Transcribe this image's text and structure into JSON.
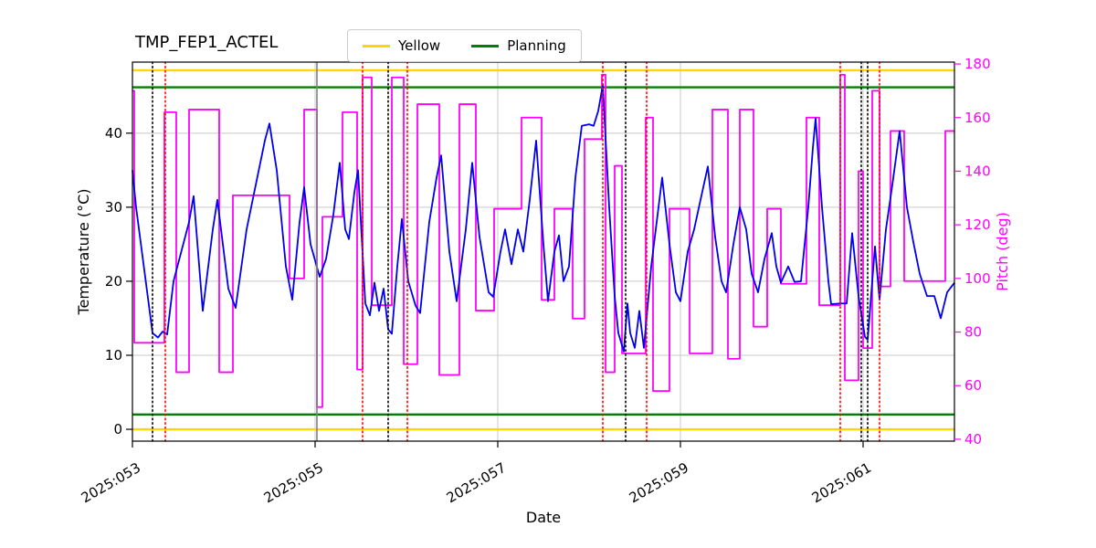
{
  "title": "TMP_FEP1_ACTEL",
  "legend": {
    "items": [
      {
        "label": "Yellow",
        "color": "#ffd700"
      },
      {
        "label": "Planning",
        "color": "#008000"
      }
    ]
  },
  "chart_data": {
    "type": "line",
    "title": "TMP_FEP1_ACTEL",
    "xlabel": "Date",
    "ylabel_left": "Temperature (°C)",
    "ylabel_right": "Pitch (deg)",
    "x_range": [
      53,
      62
    ],
    "ylim_left": [
      -1.6,
      49.6
    ],
    "ylim_right": [
      39.3,
      180.7
    ],
    "grid": true,
    "x_ticks": [
      {
        "day": 53,
        "label": "2025:053"
      },
      {
        "day": 55,
        "label": "2025:055"
      },
      {
        "day": 57,
        "label": "2025:057"
      },
      {
        "day": 59,
        "label": "2025:059"
      },
      {
        "day": 61,
        "label": "2025:061"
      }
    ],
    "y_ticks_left": [
      0,
      10,
      20,
      30,
      40
    ],
    "y_ticks_right": [
      40,
      60,
      80,
      100,
      120,
      140,
      160,
      180
    ],
    "hlines": [
      {
        "name": "Yellow",
        "color": "#ffd700",
        "axis": "left",
        "values": [
          0,
          48.5
        ]
      },
      {
        "name": "Planning",
        "color": "#008000",
        "axis": "left",
        "values": [
          2,
          46.2
        ]
      }
    ],
    "vlines": [
      {
        "name": "black-dotted-events",
        "color": "#000000",
        "style": "dotted",
        "days": [
          53.22,
          55.8,
          58.4,
          60.98,
          61.05
        ]
      },
      {
        "name": "red-dotted-events",
        "color": "#ff0000",
        "style": "dotted",
        "days": [
          53.36,
          55.52,
          56.01,
          58.15,
          58.63,
          60.75,
          61.18
        ]
      },
      {
        "name": "gray-solid-marker",
        "color": "#808080",
        "style": "solid",
        "days": [
          55.02
        ]
      }
    ],
    "series": [
      {
        "name": "Temperature",
        "axis": "left",
        "color": "#0000ee",
        "draw": "line",
        "points": [
          [
            53.0,
            35.0
          ],
          [
            53.04,
            30.0
          ],
          [
            53.22,
            13.0
          ],
          [
            53.28,
            12.4
          ],
          [
            53.33,
            13.2
          ],
          [
            53.38,
            12.8
          ],
          [
            53.45,
            20.0
          ],
          [
            53.62,
            28.0
          ],
          [
            53.67,
            31.5
          ],
          [
            53.77,
            16.0
          ],
          [
            53.88,
            27.0
          ],
          [
            53.93,
            31.0
          ],
          [
            54.05,
            19.0
          ],
          [
            54.13,
            16.4
          ],
          [
            54.25,
            27.0
          ],
          [
            54.35,
            33.0
          ],
          [
            54.45,
            39.0
          ],
          [
            54.5,
            41.3
          ],
          [
            54.58,
            35.0
          ],
          [
            54.68,
            22.0
          ],
          [
            54.75,
            17.5
          ],
          [
            54.83,
            28.0
          ],
          [
            54.88,
            32.7
          ],
          [
            54.95,
            25.0
          ],
          [
            55.05,
            20.6
          ],
          [
            55.12,
            23.0
          ],
          [
            55.2,
            29.0
          ],
          [
            55.27,
            36.0
          ],
          [
            55.33,
            27.0
          ],
          [
            55.37,
            25.7
          ],
          [
            55.43,
            32.0
          ],
          [
            55.47,
            35.0
          ],
          [
            55.55,
            17.0
          ],
          [
            55.6,
            15.4
          ],
          [
            55.65,
            19.8
          ],
          [
            55.7,
            16.0
          ],
          [
            55.75,
            19.0
          ],
          [
            55.8,
            13.5
          ],
          [
            55.84,
            12.9
          ],
          [
            55.9,
            22.0
          ],
          [
            55.95,
            28.4
          ],
          [
            56.02,
            20.0
          ],
          [
            56.1,
            16.7
          ],
          [
            56.15,
            15.7
          ],
          [
            56.25,
            28.0
          ],
          [
            56.33,
            34.0
          ],
          [
            56.38,
            37.0
          ],
          [
            56.47,
            24.0
          ],
          [
            56.55,
            17.3
          ],
          [
            56.65,
            27.0
          ],
          [
            56.72,
            36.0
          ],
          [
            56.8,
            26.0
          ],
          [
            56.9,
            18.5
          ],
          [
            56.95,
            17.9
          ],
          [
            57.03,
            24.0
          ],
          [
            57.08,
            27.0
          ],
          [
            57.15,
            22.3
          ],
          [
            57.22,
            27.0
          ],
          [
            57.28,
            24.0
          ],
          [
            57.35,
            31.0
          ],
          [
            57.42,
            39.0
          ],
          [
            57.5,
            25.0
          ],
          [
            57.55,
            17.3
          ],
          [
            57.62,
            24.0
          ],
          [
            57.67,
            26.2
          ],
          [
            57.72,
            20.0
          ],
          [
            57.78,
            22.0
          ],
          [
            57.85,
            34.0
          ],
          [
            57.92,
            41.0
          ],
          [
            58.0,
            41.2
          ],
          [
            58.05,
            41.0
          ],
          [
            58.1,
            43.0
          ],
          [
            58.15,
            46.5
          ],
          [
            58.22,
            30.0
          ],
          [
            58.28,
            18.0
          ],
          [
            58.32,
            13.0
          ],
          [
            58.38,
            10.5
          ],
          [
            58.42,
            17.0
          ],
          [
            58.45,
            13.0
          ],
          [
            58.5,
            11.0
          ],
          [
            58.55,
            16.0
          ],
          [
            58.6,
            11.0
          ],
          [
            58.68,
            22.0
          ],
          [
            58.75,
            29.0
          ],
          [
            58.8,
            34.0
          ],
          [
            58.88,
            25.0
          ],
          [
            58.95,
            18.5
          ],
          [
            59.0,
            17.3
          ],
          [
            59.08,
            24.0
          ],
          [
            59.15,
            27.0
          ],
          [
            59.22,
            31.0
          ],
          [
            59.3,
            35.5
          ],
          [
            59.38,
            26.0
          ],
          [
            59.45,
            20.0
          ],
          [
            59.5,
            18.5
          ],
          [
            59.58,
            25.0
          ],
          [
            59.65,
            30.0
          ],
          [
            59.72,
            27.0
          ],
          [
            59.78,
            21.0
          ],
          [
            59.85,
            18.5
          ],
          [
            59.92,
            23.0
          ],
          [
            60.0,
            26.5
          ],
          [
            60.05,
            22.0
          ],
          [
            60.1,
            19.8
          ],
          [
            60.18,
            22.0
          ],
          [
            60.25,
            19.9
          ],
          [
            60.32,
            20.0
          ],
          [
            60.4,
            30.0
          ],
          [
            60.45,
            38.0
          ],
          [
            60.48,
            42.0
          ],
          [
            60.55,
            30.0
          ],
          [
            60.62,
            20.0
          ],
          [
            60.65,
            16.9
          ],
          [
            60.75,
            17.0
          ],
          [
            60.82,
            17.0
          ],
          [
            60.88,
            26.5
          ],
          [
            60.95,
            18.0
          ],
          [
            61.02,
            12.5
          ],
          [
            61.05,
            12.1
          ],
          [
            61.1,
            20.0
          ],
          [
            61.13,
            24.7
          ],
          [
            61.18,
            17.5
          ],
          [
            61.25,
            27.0
          ],
          [
            61.32,
            33.0
          ],
          [
            61.4,
            40.3
          ],
          [
            61.48,
            30.0
          ],
          [
            61.55,
            25.3
          ],
          [
            61.62,
            21.0
          ],
          [
            61.7,
            18.0
          ],
          [
            61.78,
            18.0
          ],
          [
            61.85,
            15.0
          ],
          [
            61.92,
            18.5
          ],
          [
            62.0,
            19.8
          ]
        ]
      },
      {
        "name": "Pitch",
        "axis": "right",
        "color": "#ff00ff",
        "draw": "step",
        "steps": [
          [
            53.0,
            53.02,
            170
          ],
          [
            53.02,
            53.35,
            76
          ],
          [
            53.35,
            53.48,
            162
          ],
          [
            53.48,
            53.62,
            65
          ],
          [
            53.62,
            53.95,
            163
          ],
          [
            53.95,
            54.1,
            65
          ],
          [
            54.1,
            54.72,
            131
          ],
          [
            54.72,
            54.88,
            100
          ],
          [
            54.88,
            55.02,
            163
          ],
          [
            55.02,
            55.08,
            52
          ],
          [
            55.08,
            55.3,
            123
          ],
          [
            55.3,
            55.46,
            162
          ],
          [
            55.46,
            55.52,
            66
          ],
          [
            55.52,
            55.62,
            175
          ],
          [
            55.62,
            55.84,
            90
          ],
          [
            55.84,
            55.97,
            175
          ],
          [
            55.97,
            56.12,
            68
          ],
          [
            56.12,
            56.36,
            165
          ],
          [
            56.36,
            56.58,
            64
          ],
          [
            56.58,
            56.76,
            165
          ],
          [
            56.76,
            56.96,
            88
          ],
          [
            56.96,
            57.26,
            126
          ],
          [
            57.26,
            57.48,
            160
          ],
          [
            57.48,
            57.62,
            92
          ],
          [
            57.62,
            57.82,
            126
          ],
          [
            57.82,
            57.95,
            85
          ],
          [
            57.95,
            58.14,
            152
          ],
          [
            58.14,
            58.18,
            176
          ],
          [
            58.18,
            58.28,
            65
          ],
          [
            58.28,
            58.36,
            142
          ],
          [
            58.36,
            58.62,
            72
          ],
          [
            58.62,
            58.7,
            160
          ],
          [
            58.7,
            58.88,
            58
          ],
          [
            58.88,
            59.1,
            126
          ],
          [
            59.1,
            59.35,
            72
          ],
          [
            59.35,
            59.52,
            163
          ],
          [
            59.52,
            59.65,
            70
          ],
          [
            59.65,
            59.8,
            163
          ],
          [
            59.8,
            59.95,
            82
          ],
          [
            59.95,
            60.1,
            126
          ],
          [
            60.1,
            60.38,
            98
          ],
          [
            60.38,
            60.52,
            160
          ],
          [
            60.52,
            60.75,
            90
          ],
          [
            60.75,
            60.8,
            176
          ],
          [
            60.8,
            60.95,
            62
          ],
          [
            60.95,
            61.0,
            140
          ],
          [
            61.0,
            61.1,
            74
          ],
          [
            61.1,
            61.18,
            170
          ],
          [
            61.18,
            61.3,
            97
          ],
          [
            61.3,
            61.45,
            155
          ],
          [
            61.45,
            61.9,
            99
          ],
          [
            61.9,
            62.0,
            155
          ]
        ]
      }
    ]
  }
}
